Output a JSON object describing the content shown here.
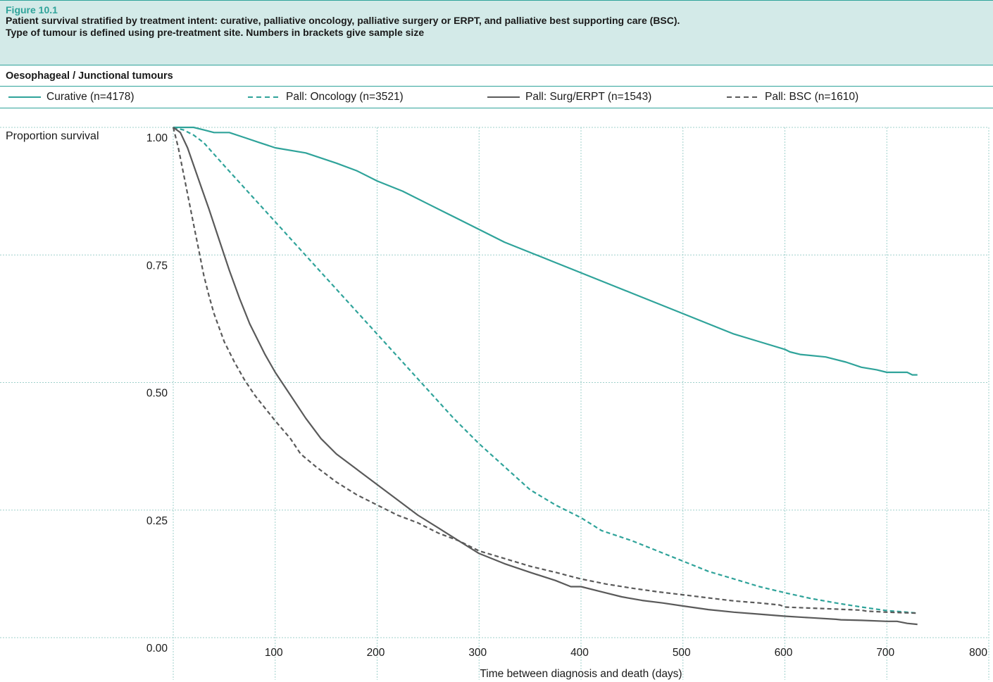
{
  "figure": {
    "label": "Figure 10.1",
    "caption_line1": "Patient survival stratified by treatment intent: curative, palliative oncology, palliative surgery or ERPT, and palliative best supporting care (BSC).",
    "caption_line2": "Type of tumour is defined using pre-treatment site. Numbers in brackets give sample size"
  },
  "section": {
    "title": "Oesophageal / Junctional tumours"
  },
  "colors": {
    "teal": "#2fa39a",
    "grey": "#5a5a5a",
    "grid": "#9fd0cb",
    "header_bg": "#d3eae8"
  },
  "chart_data": {
    "type": "line",
    "title": "Patient survival stratified by treatment intent: curative, palliative oncology, palliative surgery or ERPT, and palliative best supporting care (BSC).",
    "xlabel": "Time between diagnosis and death (days)",
    "ylabel": "Proportion survival",
    "xlim": [
      0,
      800
    ],
    "ylim": [
      0,
      1
    ],
    "xticks": [
      100,
      200,
      300,
      400,
      500,
      600,
      700,
      800
    ],
    "yticks": [
      "0.00",
      "0.25",
      "0.50",
      "0.75",
      "1.00"
    ],
    "grid": true,
    "legend_position": "top",
    "series": [
      {
        "name": "Curative (n=4178)",
        "style": "solid",
        "color": "#2fa39a",
        "x": [
          0,
          10,
          20,
          30,
          40,
          55,
          70,
          85,
          100,
          130,
          160,
          180,
          200,
          225,
          250,
          275,
          300,
          325,
          350,
          375,
          400,
          425,
          450,
          475,
          500,
          525,
          550,
          575,
          600,
          605,
          615,
          640,
          660,
          675,
          690,
          700,
          710,
          720,
          725,
          730
        ],
        "y": [
          1.0,
          1.0,
          1.0,
          0.995,
          0.99,
          0.99,
          0.98,
          0.97,
          0.96,
          0.95,
          0.93,
          0.915,
          0.895,
          0.875,
          0.85,
          0.825,
          0.8,
          0.775,
          0.755,
          0.735,
          0.715,
          0.695,
          0.675,
          0.655,
          0.635,
          0.615,
          0.595,
          0.58,
          0.565,
          0.56,
          0.555,
          0.55,
          0.54,
          0.53,
          0.525,
          0.52,
          0.52,
          0.52,
          0.515,
          0.515
        ]
      },
      {
        "name": "Pall: Oncology (n=3521)",
        "style": "dashed",
        "color": "#2fa39a",
        "x": [
          0,
          10,
          20,
          30,
          50,
          75,
          100,
          125,
          150,
          175,
          200,
          225,
          250,
          275,
          300,
          325,
          350,
          375,
          400,
          420,
          450,
          475,
          500,
          525,
          550,
          575,
          600,
          625,
          650,
          675,
          700,
          720,
          730
        ],
        "y": [
          1.0,
          0.995,
          0.985,
          0.97,
          0.925,
          0.87,
          0.815,
          0.76,
          0.705,
          0.65,
          0.595,
          0.54,
          0.485,
          0.43,
          0.38,
          0.335,
          0.29,
          0.26,
          0.235,
          0.21,
          0.19,
          0.17,
          0.15,
          0.13,
          0.115,
          0.1,
          0.088,
          0.077,
          0.068,
          0.06,
          0.053,
          0.05,
          0.048
        ]
      },
      {
        "name": "Pall: Surg/ERPT (n=1543)",
        "style": "solid",
        "color": "#5a5a5a",
        "x": [
          0,
          7,
          14,
          21,
          28,
          35,
          45,
          55,
          65,
          75,
          90,
          100,
          115,
          130,
          145,
          160,
          180,
          200,
          220,
          240,
          260,
          280,
          300,
          325,
          350,
          375,
          390,
          400,
          420,
          440,
          460,
          480,
          500,
          525,
          550,
          575,
          600,
          625,
          650,
          655,
          675,
          700,
          710,
          720,
          730
        ],
        "y": [
          1.0,
          0.99,
          0.96,
          0.92,
          0.88,
          0.84,
          0.78,
          0.72,
          0.665,
          0.615,
          0.555,
          0.52,
          0.475,
          0.43,
          0.39,
          0.36,
          0.33,
          0.3,
          0.27,
          0.24,
          0.215,
          0.19,
          0.165,
          0.145,
          0.128,
          0.112,
          0.1,
          0.1,
          0.09,
          0.08,
          0.073,
          0.068,
          0.062,
          0.055,
          0.05,
          0.046,
          0.042,
          0.039,
          0.036,
          0.035,
          0.034,
          0.032,
          0.032,
          0.028,
          0.026
        ]
      },
      {
        "name": "Pall: BSC (n=1610)",
        "style": "dashed",
        "color": "#5a5a5a",
        "x": [
          0,
          5,
          10,
          15,
          20,
          25,
          30,
          35,
          40,
          50,
          60,
          70,
          80,
          90,
          100,
          115,
          125,
          140,
          160,
          180,
          200,
          220,
          240,
          260,
          280,
          300,
          325,
          350,
          375,
          400,
          425,
          450,
          475,
          500,
          525,
          550,
          575,
          595,
          600,
          625,
          650,
          675,
          680,
          700,
          730
        ],
        "y": [
          1.0,
          0.96,
          0.91,
          0.86,
          0.81,
          0.76,
          0.71,
          0.67,
          0.635,
          0.58,
          0.54,
          0.505,
          0.475,
          0.45,
          0.425,
          0.39,
          0.36,
          0.335,
          0.305,
          0.28,
          0.26,
          0.24,
          0.225,
          0.205,
          0.19,
          0.17,
          0.155,
          0.14,
          0.128,
          0.115,
          0.105,
          0.097,
          0.09,
          0.084,
          0.078,
          0.072,
          0.068,
          0.064,
          0.06,
          0.058,
          0.056,
          0.054,
          0.052,
          0.05,
          0.048
        ]
      }
    ]
  }
}
